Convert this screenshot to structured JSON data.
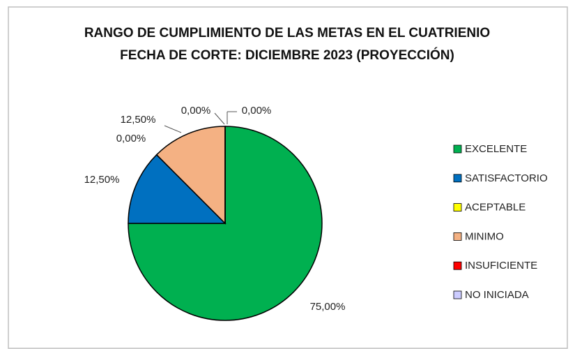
{
  "chart_data": {
    "type": "pie",
    "title": "RANGO DE CUMPLIMIENTO DE LAS METAS EN EL CUATRIENIO",
    "subtitle": "FECHA DE CORTE: DICIEMBRE 2023 (PROYECCIÓN)",
    "categories": [
      "EXCELENTE",
      "SATISFACTORIO",
      "ACEPTABLE",
      "MINIMO",
      "INSUFICIENTE",
      "NO INICIADA"
    ],
    "values": [
      75,
      12.5,
      0,
      12.5,
      0,
      0
    ],
    "value_labels": [
      "75,00%",
      "12,50%",
      "0,00%",
      "12,50%",
      "0,00%",
      "0,00%"
    ],
    "colors": [
      "#00b050",
      "#0070c0",
      "#ffff00",
      "#f4b183",
      "#ff0000",
      "#ccccff"
    ],
    "legend": "right"
  }
}
